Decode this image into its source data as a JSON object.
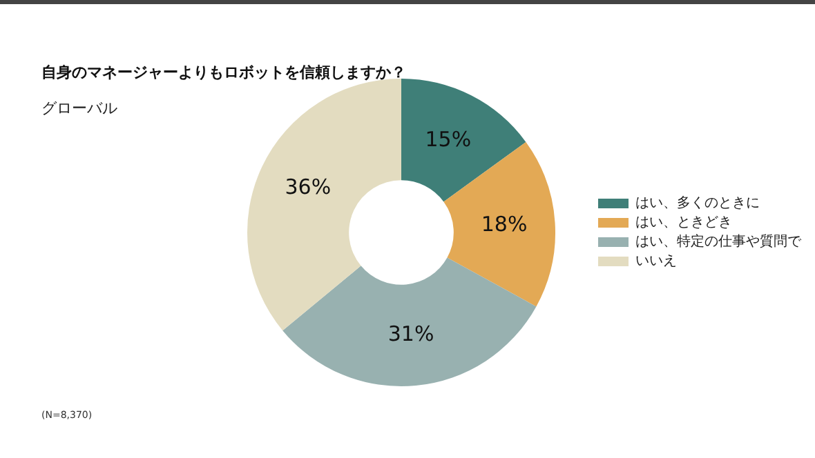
{
  "chart_data": {
    "type": "donut",
    "title": "自身のマネージャーよりもロボットを信頼しますか？",
    "subtitle": "グローバル",
    "categories": [
      "はい、多くのときに",
      "はい、ときどき",
      "はい、特定の仕事や質問で",
      "いいえ"
    ],
    "values": [
      15,
      18,
      31,
      36
    ],
    "colors": [
      "#3f7f78",
      "#e3a955",
      "#98b1b0",
      "#e3dcc0"
    ],
    "value_labels": [
      "15%",
      "18%",
      "31%",
      "36%"
    ],
    "legend": "right",
    "annotations": [
      "(N=8,370)"
    ]
  }
}
